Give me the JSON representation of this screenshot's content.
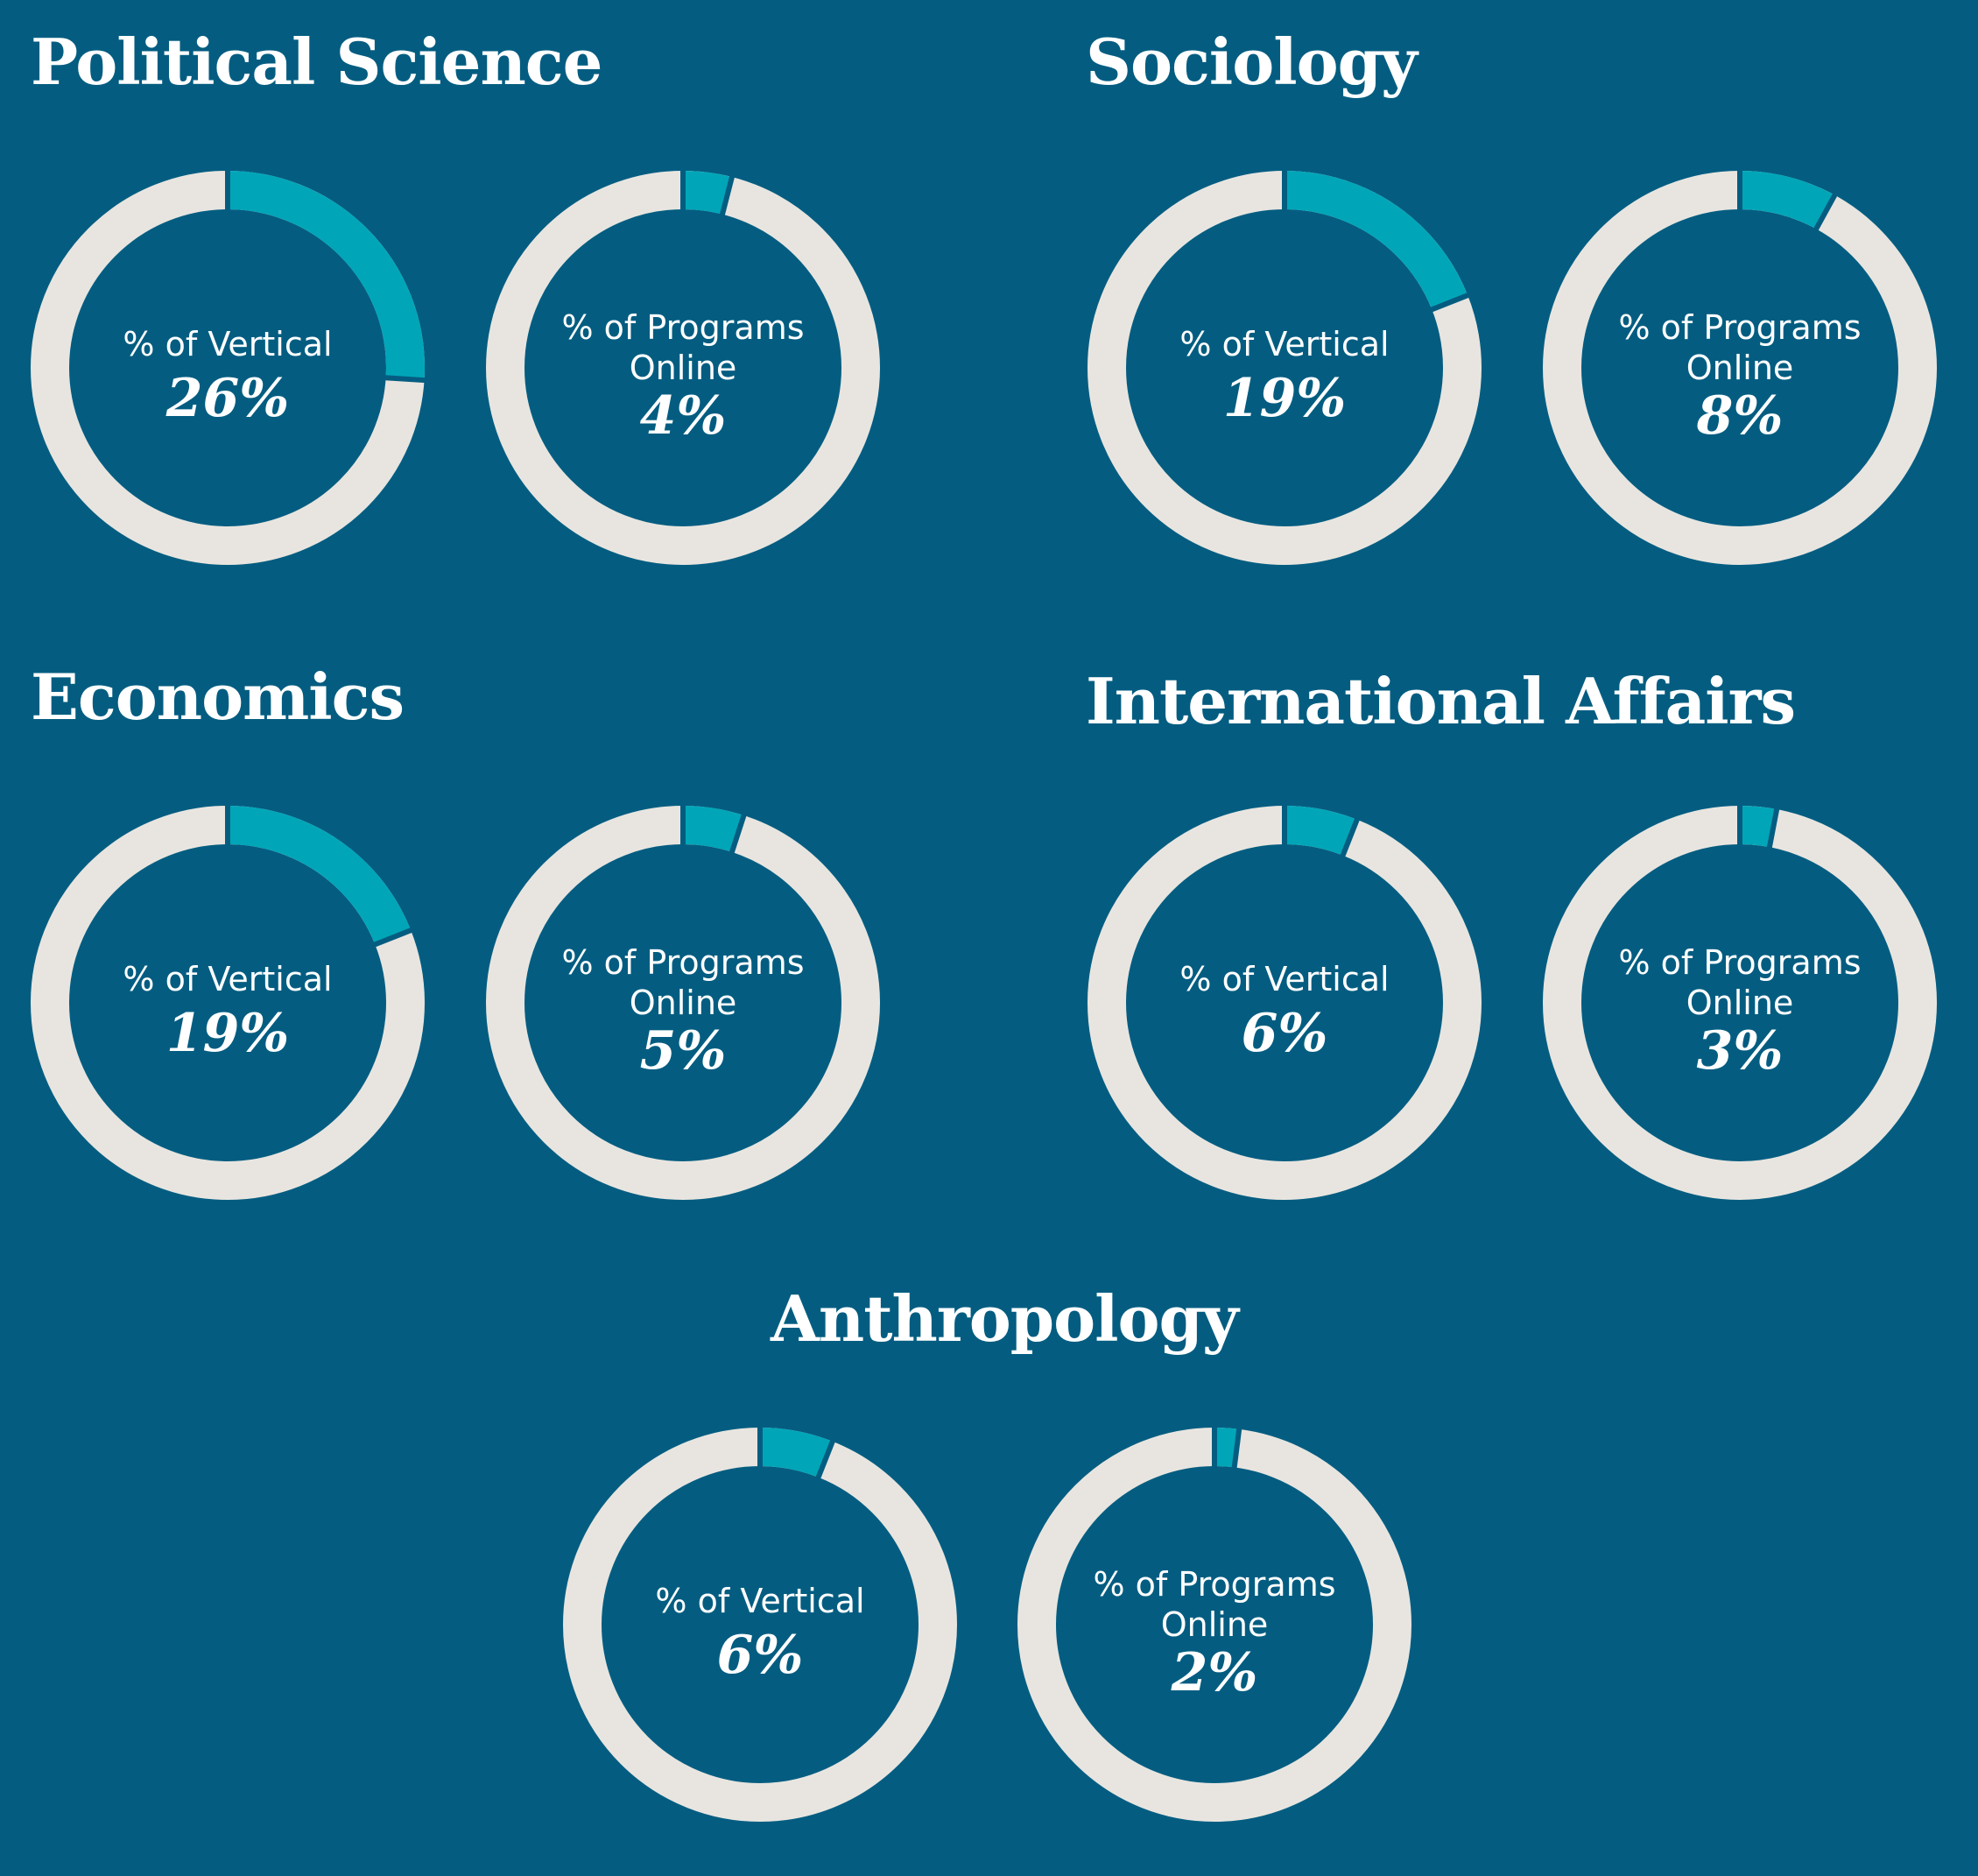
{
  "colors": {
    "background": "#045d81",
    "track": "#e8e5e0",
    "accent": "#00a6b8"
  },
  "chart_data": [
    {
      "type": "pie",
      "title": "Political Science",
      "series": [
        {
          "label": [
            "% of Vertical"
          ],
          "value": 26
        },
        {
          "label": [
            "% of Programs",
            "Online"
          ],
          "value": 4
        }
      ]
    },
    {
      "type": "pie",
      "title": "Sociology",
      "series": [
        {
          "label": [
            "% of Vertical"
          ],
          "value": 19
        },
        {
          "label": [
            "% of Programs",
            "Online"
          ],
          "value": 8
        }
      ]
    },
    {
      "type": "pie",
      "title": "Economics",
      "series": [
        {
          "label": [
            "% of Vertical"
          ],
          "value": 19
        },
        {
          "label": [
            "% of Programs",
            "Online"
          ],
          "value": 5
        }
      ]
    },
    {
      "type": "pie",
      "title": "International Affairs",
      "series": [
        {
          "label": [
            "% of Vertical"
          ],
          "value": 6
        },
        {
          "label": [
            "% of Programs",
            "Online"
          ],
          "value": 3
        }
      ]
    },
    {
      "type": "pie",
      "title": "Anthropology",
      "series": [
        {
          "label": [
            "% of Vertical"
          ],
          "value": 6
        },
        {
          "label": [
            "% of Programs",
            "Online"
          ],
          "value": 2
        }
      ]
    }
  ]
}
